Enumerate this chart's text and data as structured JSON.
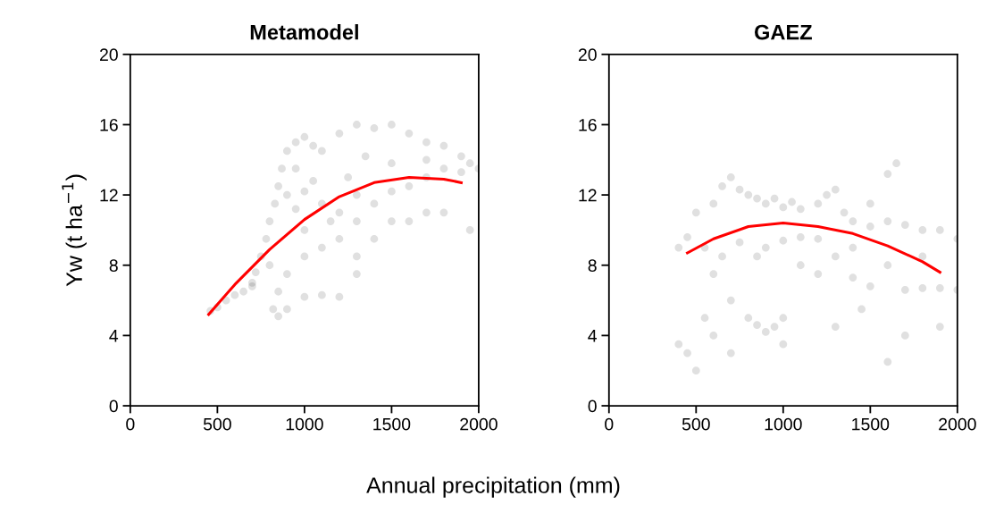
{
  "chart_data": [
    {
      "type": "scatter",
      "title": "Metamodel",
      "xlabel": "Annual precipitation (mm)",
      "ylabel": "Yw (t ha$^{−1}$)",
      "xlim": [
        0,
        2000
      ],
      "xticks": [
        0,
        500,
        1000,
        1500,
        2000
      ],
      "ylim": [
        0,
        20
      ],
      "yticks": [
        0,
        4,
        8,
        12,
        16,
        20
      ],
      "grid": false,
      "legend": false,
      "series": [
        {
          "marker": "circle",
          "color": "#000000",
          "x": [
            460,
            500,
            550,
            600,
            650,
            700,
            720,
            750,
            780,
            800,
            830,
            850,
            870,
            900,
            950,
            1000,
            1050,
            1100,
            1200,
            1300,
            1400,
            1500,
            1600,
            1700,
            1800,
            1900,
            1950,
            2000,
            1900,
            1800,
            1700,
            1600,
            1500,
            1400,
            1300,
            1200,
            1100,
            1000,
            900,
            850,
            820,
            850,
            900,
            1000,
            1100,
            1200,
            1300,
            1300,
            1400,
            1500,
            1600,
            1700,
            1800,
            1950,
            900,
            950,
            1000,
            1100,
            800,
            700,
            1000,
            1200,
            1250,
            1350,
            1500,
            1700,
            950,
            1050,
            1150,
            1300
          ],
          "values": [
            5.4,
            5.6,
            6.0,
            6.3,
            6.5,
            6.8,
            7.6,
            8.5,
            9.5,
            10.5,
            11.5,
            12.5,
            13.5,
            14.5,
            15.0,
            15.3,
            14.8,
            14.5,
            15.5,
            16.0,
            15.8,
            16.0,
            15.5,
            15.0,
            14.8,
            14.2,
            13.8,
            13.5,
            13.3,
            13.5,
            13.0,
            12.5,
            12.2,
            11.5,
            10.5,
            9.5,
            9.0,
            8.5,
            7.5,
            6.5,
            5.5,
            5.1,
            5.5,
            6.2,
            6.3,
            6.2,
            7.5,
            8.5,
            9.5,
            10.5,
            10.5,
            11.0,
            11.0,
            10.0,
            12.0,
            11.2,
            12.2,
            11.5,
            8.0,
            7.0,
            10.0,
            11.0,
            13.0,
            14.2,
            13.8,
            14.0,
            13.5,
            12.8,
            10.5,
            12.0
          ]
        },
        {
          "type": "line",
          "color": "#ff0000",
          "line_style": "solid",
          "marker": "none",
          "x": [
            450,
            600,
            800,
            1000,
            1200,
            1400,
            1600,
            1800,
            1900
          ],
          "values": [
            5.2,
            6.9,
            8.9,
            10.6,
            11.9,
            12.7,
            13.0,
            12.9,
            12.7
          ]
        }
      ]
    },
    {
      "type": "scatter",
      "title": "GAEZ",
      "xlim": [
        0,
        2000
      ],
      "xticks": [
        0,
        500,
        1000,
        1500,
        2000
      ],
      "ylim": [
        0,
        20
      ],
      "yticks": [
        0,
        4,
        8,
        12,
        16,
        20
      ],
      "grid": false,
      "legend": false,
      "series": [
        {
          "marker": "circle",
          "color": "#000000",
          "x": [
            400,
            450,
            500,
            600,
            650,
            700,
            750,
            800,
            850,
            900,
            950,
            1000,
            1050,
            1100,
            1200,
            1250,
            1300,
            1350,
            1400,
            1500,
            1600,
            1700,
            1800,
            1900,
            1600,
            1650,
            1500,
            1700,
            1800,
            1900,
            2000,
            1500,
            1400,
            1200,
            1100,
            1000,
            950,
            900,
            850,
            800,
            700,
            600,
            550,
            650,
            750,
            850,
            900,
            1000,
            1100,
            1200,
            1300,
            1400,
            1600,
            1800,
            1900,
            1700,
            1600,
            500,
            450,
            400,
            550,
            600,
            700,
            1000,
            1300,
            1450,
            2000
          ],
          "values": [
            9.0,
            9.6,
            11.0,
            11.5,
            12.5,
            13.0,
            12.3,
            12.0,
            11.8,
            11.5,
            11.8,
            11.3,
            11.6,
            11.2,
            11.5,
            12.0,
            12.3,
            11.0,
            10.5,
            10.2,
            10.5,
            10.3,
            10.0,
            10.0,
            13.2,
            13.8,
            11.5,
            6.6,
            6.7,
            6.7,
            6.6,
            6.8,
            7.3,
            7.5,
            8.0,
            5.0,
            4.5,
            4.2,
            4.6,
            5.0,
            6.0,
            7.5,
            9.0,
            8.5,
            9.3,
            8.5,
            9.0,
            9.4,
            9.6,
            9.5,
            8.5,
            9.0,
            8.0,
            8.5,
            4.5,
            4.0,
            2.5,
            2.0,
            3.0,
            3.5,
            5.0,
            4.0,
            3.0,
            3.5,
            4.5,
            5.5,
            9.5
          ]
        },
        {
          "type": "line",
          "color": "#ff0000",
          "line_style": "solid",
          "marker": "none",
          "x": [
            450,
            600,
            800,
            1000,
            1200,
            1400,
            1600,
            1800,
            1900
          ],
          "values": [
            8.7,
            9.5,
            10.2,
            10.4,
            10.2,
            9.8,
            9.1,
            8.2,
            7.6
          ]
        }
      ]
    }
  ]
}
